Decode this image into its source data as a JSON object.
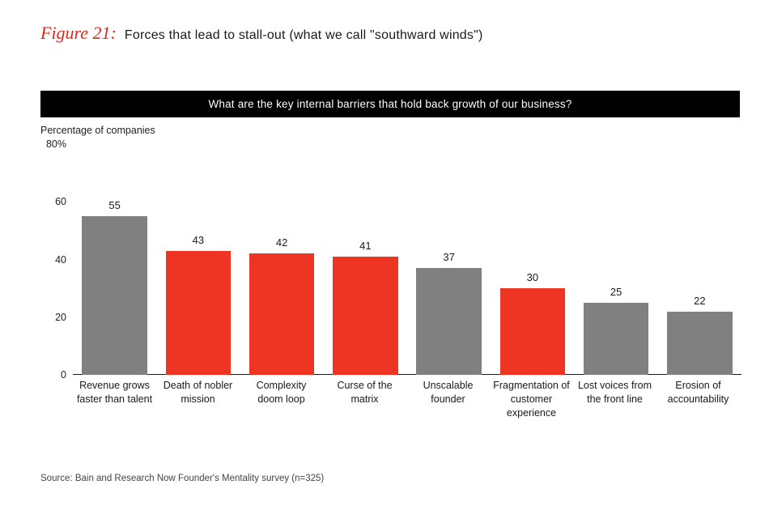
{
  "figure": {
    "label": "Figure 21:",
    "title": "Forces that lead to stall-out (what we call \"southward winds\")"
  },
  "question_bar": "What are the key internal barriers that hold back growth of our business?",
  "y_axis_title": "Percentage of companies",
  "chart": {
    "type": "bar",
    "ylim": [
      0,
      80
    ],
    "yticks": [
      {
        "value": 0,
        "label": "0"
      },
      {
        "value": 20,
        "label": "20"
      },
      {
        "value": 40,
        "label": "40"
      },
      {
        "value": 60,
        "label": "60"
      },
      {
        "value": 80,
        "label": "80%"
      }
    ],
    "bar_width_pct": 78,
    "colors": {
      "gray": "#808080",
      "red": "#ee3524",
      "axis": "#1a1a1a",
      "background": "#ffffff"
    },
    "label_fontsize": 12.5,
    "value_fontsize": 13,
    "series": [
      {
        "label": "Revenue grows faster than talent",
        "value": 55,
        "color": "#808080"
      },
      {
        "label": "Death of nobler mission",
        "value": 43,
        "color": "#ee3524"
      },
      {
        "label": "Complexity doom loop",
        "value": 42,
        "color": "#ee3524"
      },
      {
        "label": "Curse of the matrix",
        "value": 41,
        "color": "#ee3524"
      },
      {
        "label": "Unscalable founder",
        "value": 37,
        "color": "#808080"
      },
      {
        "label": "Fragmentation of customer experience",
        "value": 30,
        "color": "#ee3524"
      },
      {
        "label": "Lost voices from the front line",
        "value": 25,
        "color": "#808080"
      },
      {
        "label": "Erosion of accountability",
        "value": 22,
        "color": "#808080"
      }
    ]
  },
  "source": "Source: Bain and Research Now Founder's Mentality survey (n=325)"
}
